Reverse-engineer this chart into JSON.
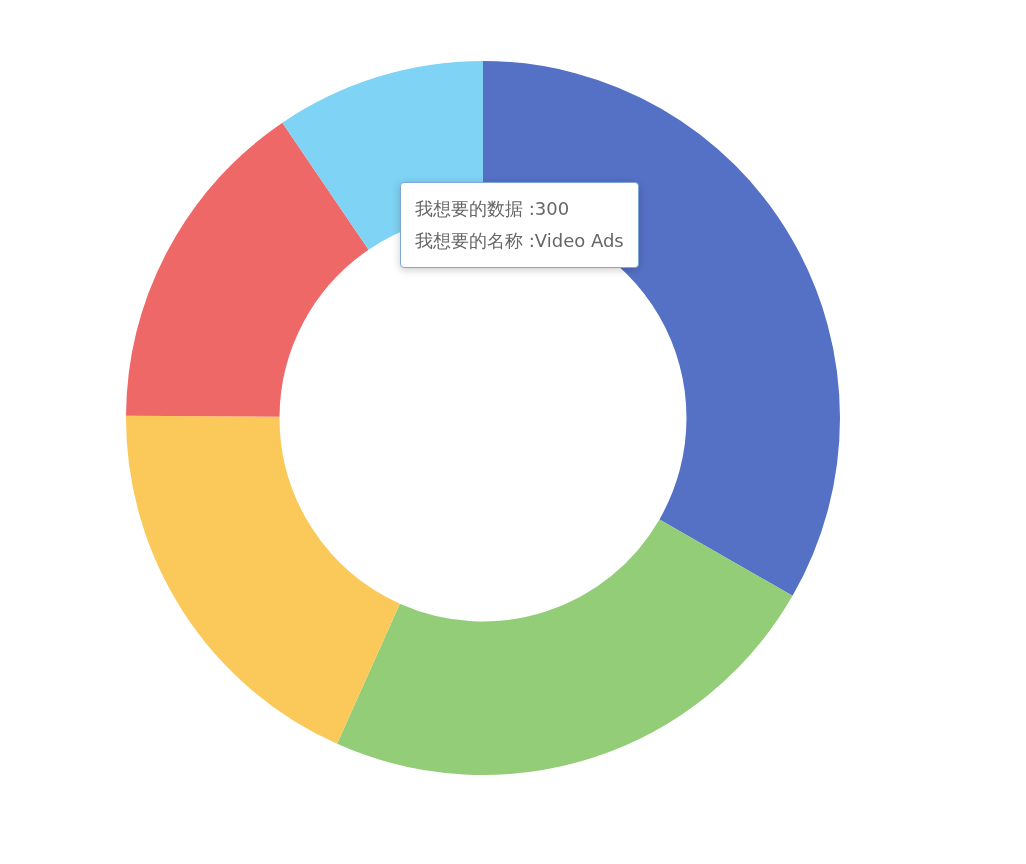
{
  "chart_data": {
    "type": "donut",
    "categories": [
      null,
      null,
      null,
      null,
      null
    ],
    "values": [
      33.3,
      23.4,
      18.4,
      15.4,
      9.5
    ],
    "colors": [
      "#5571c6",
      "#93cd78",
      "#fbc95a",
      "#ef6868",
      "#7fd3f4"
    ],
    "annotations": [
      "我想要的数据 :300",
      "我想要的名称 :Video Ads"
    ]
  }
}
